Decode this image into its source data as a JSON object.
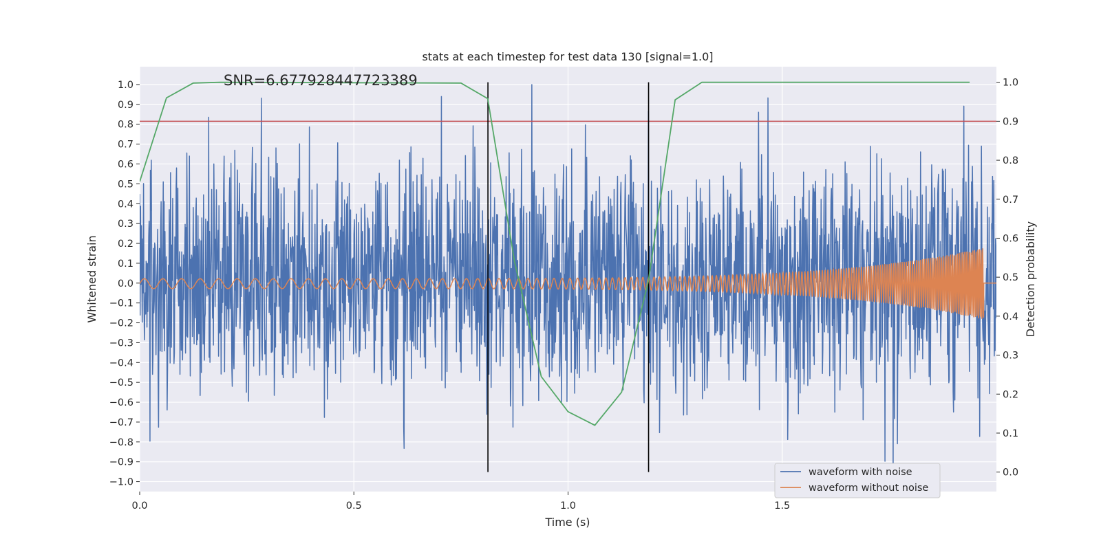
{
  "chart_data": {
    "type": "line",
    "title": "stats at each timestep for test data 130 [signal=1.0]",
    "annotation": "SNR=6.677928447723389",
    "xlabel": "Time (s)",
    "ylabel_left": "Whitened strain",
    "ylabel_right": "Detection probability",
    "xlim": [
      0.0,
      2.0
    ],
    "ylim_left": [
      -1.05,
      1.09
    ],
    "ylim_right": [
      -0.05,
      1.04
    ],
    "x_ticks": [
      "0.0",
      "0.5",
      "1.0",
      "1.5"
    ],
    "y_left_ticks": [
      "1.0",
      "0.9",
      "0.8",
      "0.7",
      "0.6",
      "0.5",
      "0.4",
      "0.3",
      "0.2",
      "0.1",
      "0.0",
      "−0.1",
      "−0.2",
      "−0.3",
      "−0.4",
      "−0.5",
      "−0.6",
      "−0.7",
      "−0.8",
      "−0.9",
      "−1.0"
    ],
    "y_right_ticks": [
      "1.0",
      "0.9",
      "0.8",
      "0.7",
      "0.6",
      "0.5",
      "0.4",
      "0.3",
      "0.2",
      "0.1",
      "0.0"
    ],
    "threshold": {
      "axis": "right",
      "value": 0.9
    },
    "vertical_lines": [
      0.813,
      1.188
    ],
    "series": [
      {
        "name": "waveform with noise",
        "axis": "left",
        "color": "#4c72b0",
        "kind": "noise",
        "amplitude_range": [
          -1.0,
          1.0
        ],
        "samples": 2000
      },
      {
        "name": "waveform without noise",
        "axis": "left",
        "color": "#dd8452",
        "kind": "chirp",
        "amplitude_start": 0.025,
        "amplitude_end": 0.18,
        "end_time": 1.97
      },
      {
        "name": "detection probability",
        "axis": "right",
        "color": "#55a868",
        "kind": "line",
        "x": [
          0.0,
          0.0625,
          0.125,
          0.1875,
          0.75,
          0.8125,
          0.875,
          0.9375,
          1.0,
          1.0625,
          1.125,
          1.1875,
          1.25,
          1.3125,
          1.9375
        ],
        "values": [
          0.745,
          0.96,
          0.998,
          1.0,
          0.998,
          0.958,
          0.54,
          0.245,
          0.155,
          0.12,
          0.205,
          0.49,
          0.955,
          1.0,
          1.0
        ]
      }
    ],
    "legend": {
      "placement": "bottom-right",
      "entries": [
        "waveform with noise",
        "waveform without noise"
      ]
    },
    "grid": true
  }
}
